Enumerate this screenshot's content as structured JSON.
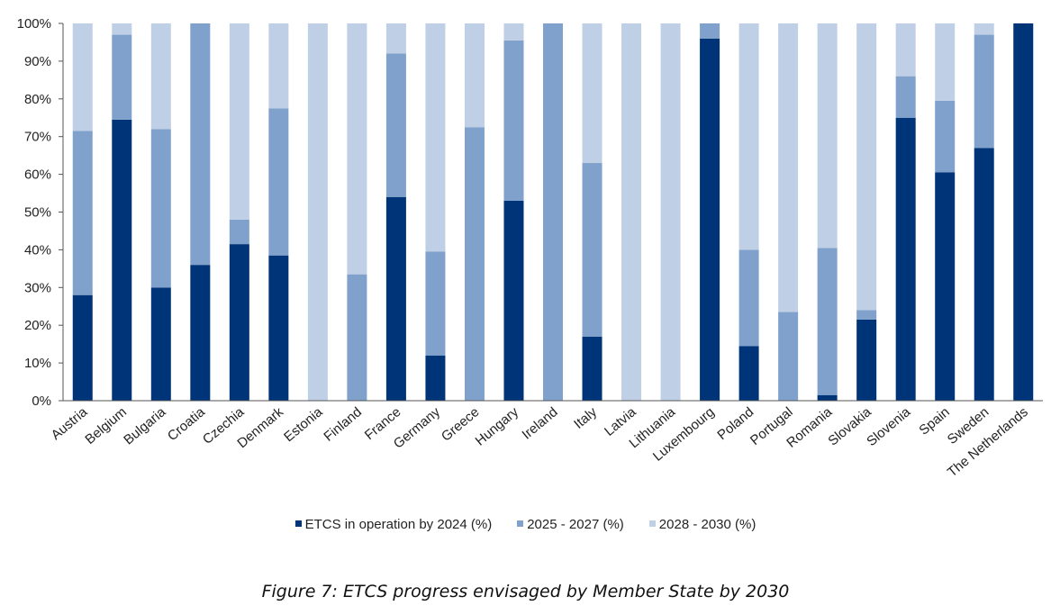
{
  "chart_data": {
    "type": "bar",
    "stacked": true,
    "categories": [
      "Austria",
      "Belgium",
      "Bulgaria",
      "Croatia",
      "Czechia",
      "Denmark",
      "Estonia",
      "Finland",
      "France",
      "Germany",
      "Greece",
      "Hungary",
      "Ireland",
      "Italy",
      "Latvia",
      "Lithuania",
      "Luxembourg",
      "Poland",
      "Portugal",
      "Romania",
      "Slovakia",
      "Slovenia",
      "Spain",
      "Sweden",
      "The Netherlands"
    ],
    "series": [
      {
        "name": "ETCS in operation by 2024 (%)",
        "color": "#003478",
        "values": [
          28,
          74.5,
          30,
          36,
          41.5,
          38.5,
          0,
          0,
          54,
          12,
          0,
          53,
          0,
          17,
          0,
          0,
          96,
          14.5,
          0,
          1.5,
          21.5,
          75,
          60.5,
          67,
          100
        ]
      },
      {
        "name": "2025 - 2027 (%)",
        "color": "#7fa1cc",
        "values": [
          43.5,
          22.5,
          42,
          64,
          6.5,
          39,
          0,
          33.5,
          38,
          27.5,
          72.5,
          42.5,
          100,
          46,
          0,
          0,
          4,
          25.5,
          23.5,
          39,
          2.5,
          11,
          19,
          30,
          0
        ]
      },
      {
        "name": "2028 - 2030 (%)",
        "color": "#bfcfe5",
        "values": [
          28.5,
          3,
          28,
          0,
          52,
          22.5,
          100,
          66.5,
          8,
          60.5,
          27.5,
          4.5,
          0,
          37,
          100,
          100,
          0,
          60,
          76.5,
          59.5,
          76,
          14,
          20.5,
          3,
          0
        ]
      }
    ],
    "yticks": [
      "0%",
      "10%",
      "20%",
      "30%",
      "40%",
      "50%",
      "60%",
      "70%",
      "80%",
      "90%",
      "100%"
    ],
    "ylim": [
      0,
      100
    ],
    "legend_position": "bottom",
    "grid": false
  },
  "caption": "Figure 7: ETCS progress envisaged by Member State by 2030"
}
